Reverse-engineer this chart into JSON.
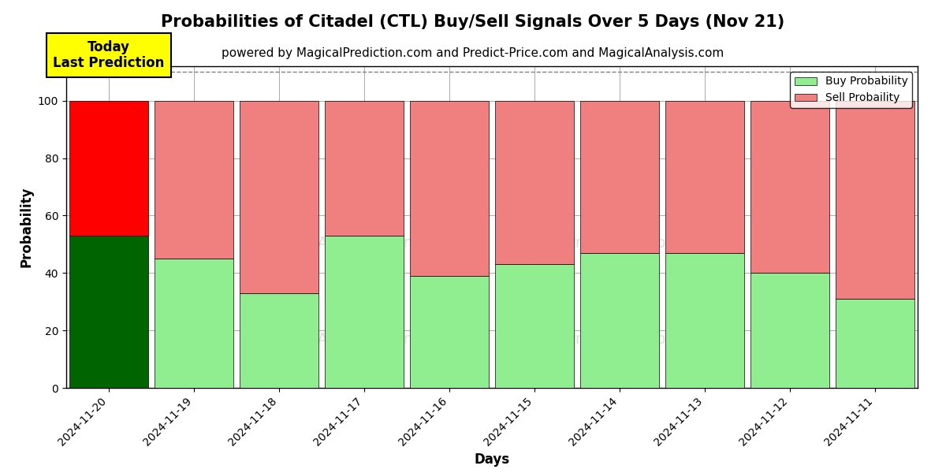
{
  "title": "Probabilities of Citadel (CTL) Buy/Sell Signals Over 5 Days (Nov 21)",
  "subtitle": "powered by MagicalPrediction.com and Predict-Price.com and MagicalAnalysis.com",
  "xlabel": "Days",
  "ylabel": "Probability",
  "dates": [
    "2024-11-20",
    "2024-11-19",
    "2024-11-18",
    "2024-11-17",
    "2024-11-16",
    "2024-11-15",
    "2024-11-14",
    "2024-11-13",
    "2024-11-12",
    "2024-11-11"
  ],
  "buy_values": [
    53,
    45,
    33,
    53,
    39,
    43,
    47,
    47,
    40,
    31
  ],
  "sell_values": [
    47,
    55,
    67,
    47,
    61,
    57,
    53,
    53,
    60,
    69
  ],
  "today_idx": 0,
  "buy_color_today": "#006400",
  "sell_color_today": "#FF0000",
  "buy_color_normal": "#90EE90",
  "sell_color_normal": "#F08080",
  "today_label": "Today\nLast Prediction",
  "today_label_bg": "#FFFF00",
  "legend_buy_label": "Buy Probability",
  "legend_sell_label": "Sell Probaility",
  "ylim": [
    0,
    112
  ],
  "yticks": [
    0,
    20,
    40,
    60,
    80,
    100
  ],
  "dashed_line_y": 110,
  "background_color": "#ffffff",
  "grid_color": "#aaaaaa",
  "title_fontsize": 15,
  "subtitle_fontsize": 11,
  "axis_label_fontsize": 12,
  "tick_fontsize": 10,
  "bar_width": 0.93
}
